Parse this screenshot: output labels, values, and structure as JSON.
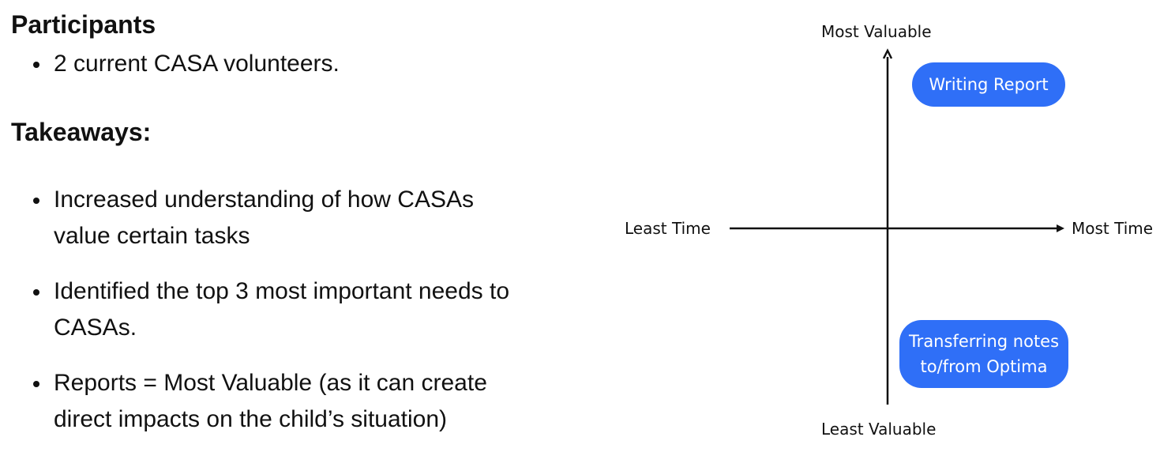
{
  "participants": {
    "heading": "Participants",
    "items": [
      "2 current CASA volunteers."
    ]
  },
  "takeaways": {
    "heading": "Takeaways:",
    "items": [
      {
        "line1": "Increased understanding of how CASAs",
        "line2": "value certain tasks"
      },
      {
        "line1": "Identified the top 3 most important needs to",
        "line2": "CASAs."
      },
      {
        "line1": "Reports = Most Valuable (as it can create",
        "line2": "direct impacts on the child’s situation)"
      }
    ]
  },
  "diagram": {
    "axes": {
      "top": "Most Valuable",
      "bottom": "Least Valuable",
      "left": "Least Time",
      "right": "Most Time"
    },
    "items": [
      {
        "lines": [
          "Writing Report"
        ]
      },
      {
        "lines": [
          "Transferring notes",
          "to/from Optima"
        ]
      }
    ],
    "colors": {
      "pill": "#2f6ff7",
      "axis": "#111111",
      "pill_text": "#ffffff"
    }
  }
}
